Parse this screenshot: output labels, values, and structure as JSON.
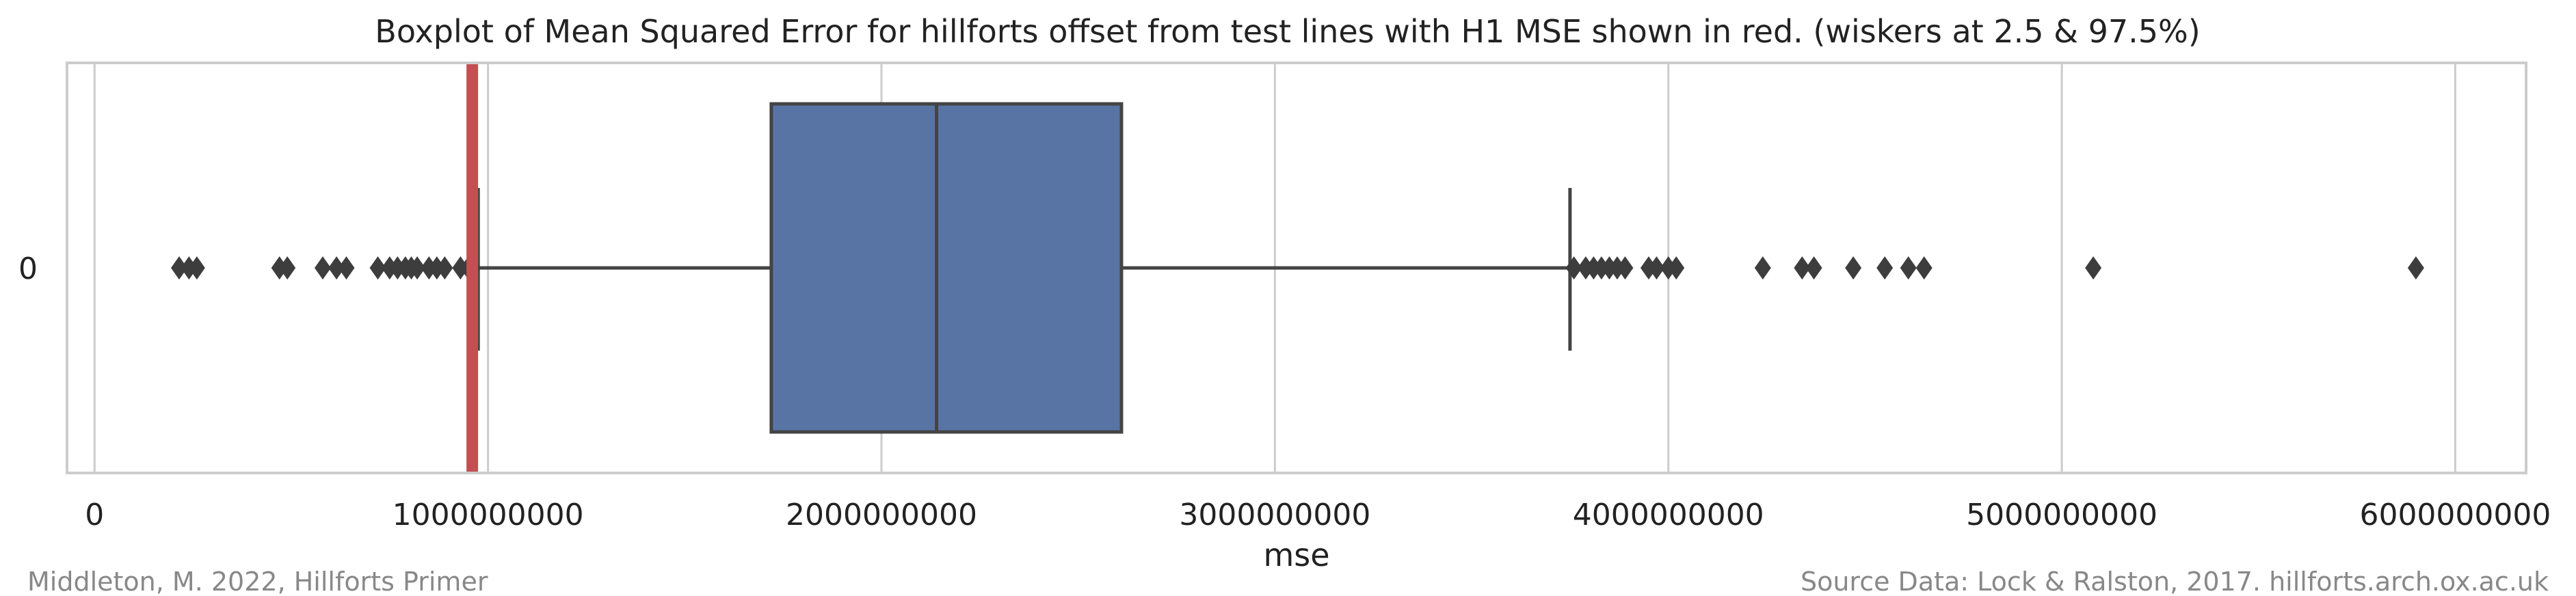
{
  "chart_data": {
    "type": "boxplot",
    "title": "Boxplot of Mean Squared Error for hillforts offset from test lines with H1 MSE shown in red. (wiskers at 2.5 & 97.5%)",
    "xlabel": "mse",
    "ylabel": "",
    "categories": [
      "0"
    ],
    "xlim": [
      -70000000,
      6180000000
    ],
    "x_ticks": [
      0,
      1000000000,
      2000000000,
      3000000000,
      4000000000,
      5000000000,
      6000000000
    ],
    "x_tick_labels": [
      "0",
      "1000000000",
      "2000000000",
      "3000000000",
      "4000000000",
      "5000000000",
      "6000000000"
    ],
    "grid": "vertical",
    "box": {
      "whisker_low": 975000000,
      "q1": 1720000000,
      "median": 2140000000,
      "q3": 2610000000,
      "whisker_high": 3750000000,
      "fill": "#5874a5"
    },
    "outliers": [
      215000000,
      240000000,
      260000000,
      470000000,
      490000000,
      580000000,
      615000000,
      640000000,
      720000000,
      750000000,
      770000000,
      790000000,
      805000000,
      820000000,
      850000000,
      870000000,
      890000000,
      930000000,
      950000000,
      960000000,
      3760000000,
      3790000000,
      3810000000,
      3830000000,
      3850000000,
      3870000000,
      3890000000,
      3950000000,
      3970000000,
      4000000000,
      4020000000,
      4240000000,
      4340000000,
      4370000000,
      4470000000,
      4550000000,
      4610000000,
      4650000000,
      5080000000,
      5900000000
    ],
    "reference_line": {
      "value": 960000000,
      "color": "#c44e52"
    }
  },
  "footer": {
    "left": "Middleton, M. 2022, Hillforts Primer",
    "right": "Source Data: Lock & Ralston, 2017. hillforts.arch.ox.ac.uk"
  }
}
